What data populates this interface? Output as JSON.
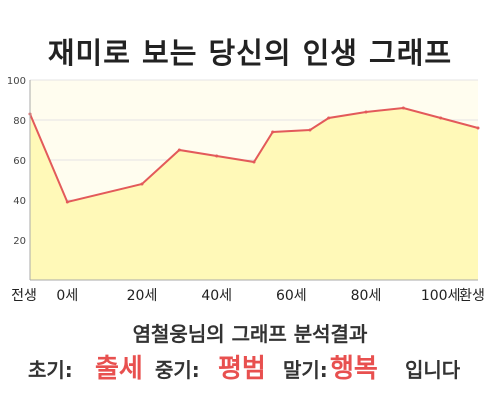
{
  "title": "재미로 보는 당신의 인생 그래프",
  "subtitle": "염철웅님의 그래프 분석결과",
  "result": {
    "early_label": "초기:",
    "early_value": "출세",
    "mid_label": "중기:",
    "mid_value": "평범",
    "late_label": "말기:",
    "late_value": "행복",
    "ending": "입니다"
  },
  "colors": {
    "line": "#e35a5a",
    "fill": "#fff9b8",
    "plot_background": "#fffdef",
    "grid": "#e4e4e4",
    "highlight": "#e8504f"
  },
  "chart_data": {
    "type": "area",
    "title": "재미로 보는 당신의 인생 그래프",
    "x_tick_labels": [
      "전생",
      "0세",
      "20세",
      "40세",
      "60세",
      "80세",
      "100세",
      "환생"
    ],
    "y_ticks": [
      20,
      40,
      60,
      80,
      100
    ],
    "ylim": [
      0,
      100
    ],
    "grid": true,
    "series": [
      {
        "x": [
          -10,
          0,
          20,
          30,
          40,
          50,
          55,
          65,
          70,
          80,
          90,
          100,
          110
        ],
        "values": [
          83,
          39,
          48,
          65,
          62,
          59,
          74,
          75,
          81,
          84,
          86,
          81,
          76
        ]
      }
    ]
  }
}
